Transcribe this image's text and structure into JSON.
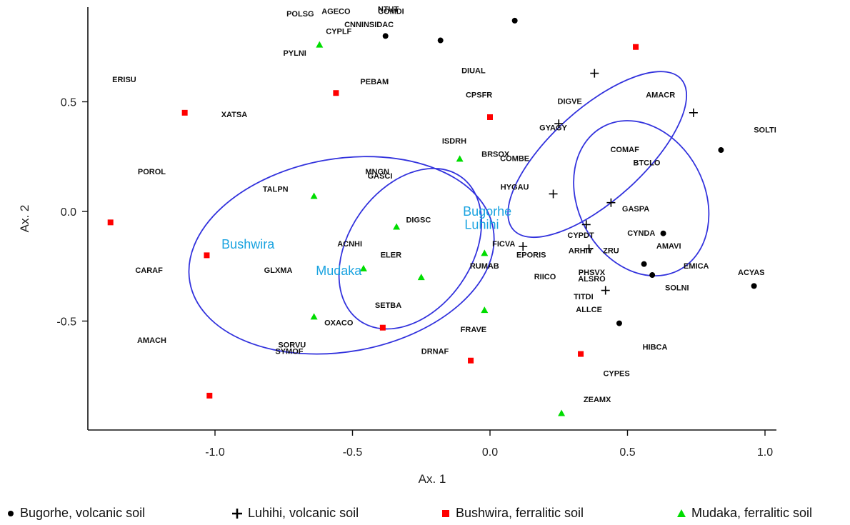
{
  "chart_data": {
    "type": "scatter",
    "xlabel": "Ax. 1",
    "ylabel": "Ax. 2",
    "xlim": [
      -1.47,
      1.05
    ],
    "ylim": [
      -1.0,
      0.93
    ],
    "xticks": [
      "-1.0",
      "-0.5",
      "0.0",
      "0.5",
      "1.0"
    ],
    "xtick_values": [
      -1.0,
      -0.5,
      0.0,
      0.5,
      1.0
    ],
    "yticks": [
      "0.5",
      "0.0",
      "-0.5"
    ],
    "ytick_values": [
      0.5,
      0.0,
      -0.5
    ],
    "grid": false,
    "legend_position": "bottom",
    "series": [
      {
        "name": "Bugorhe, volcanic soil",
        "marker": "circle",
        "color": "#000000",
        "points": [
          [
            -0.38,
            0.8
          ],
          [
            -0.18,
            0.78
          ],
          [
            0.09,
            0.87
          ],
          [
            0.84,
            0.28
          ],
          [
            0.63,
            -0.1
          ],
          [
            0.56,
            -0.24
          ],
          [
            0.59,
            -0.29
          ],
          [
            0.96,
            -0.34
          ],
          [
            0.47,
            -0.51
          ]
        ]
      },
      {
        "name": "Luhihi, volcanic soil",
        "marker": "plus",
        "color": "#000000",
        "points": [
          [
            0.38,
            0.63
          ],
          [
            0.74,
            0.45
          ],
          [
            0.25,
            0.4
          ],
          [
            0.23,
            0.08
          ],
          [
            0.44,
            0.04
          ],
          [
            0.35,
            -0.06
          ],
          [
            0.36,
            -0.17
          ],
          [
            0.12,
            -0.16
          ],
          [
            0.42,
            -0.36
          ]
        ]
      },
      {
        "name": "Bushwira, ferralitic soil",
        "marker": "square",
        "color": "#ff0000",
        "points": [
          [
            0.53,
            0.75
          ],
          [
            -0.56,
            0.54
          ],
          [
            -1.11,
            0.45
          ],
          [
            0.0,
            0.43
          ],
          [
            -1.38,
            -0.05
          ],
          [
            -1.03,
            -0.2
          ],
          [
            -0.39,
            -0.53
          ],
          [
            -0.07,
            -0.68
          ],
          [
            0.33,
            -0.65
          ],
          [
            -1.02,
            -0.84
          ]
        ]
      },
      {
        "name": "Mudaka, ferralitic soil",
        "marker": "triangle",
        "color": "#00dd00",
        "points": [
          [
            -0.62,
            0.76
          ],
          [
            -0.11,
            0.24
          ],
          [
            -0.64,
            0.07
          ],
          [
            -0.34,
            -0.07
          ],
          [
            -0.46,
            -0.26
          ],
          [
            -0.25,
            -0.3
          ],
          [
            -0.02,
            -0.45
          ],
          [
            -0.64,
            -0.48
          ],
          [
            0.26,
            -0.92
          ],
          [
            -0.02,
            -0.19
          ]
        ]
      }
    ],
    "species_labels": [
      {
        "text": "NTUT",
        "x": -0.37,
        "y": 0.91
      },
      {
        "text": "AGECO",
        "x": -0.56,
        "y": 0.9
      },
      {
        "text": "COMDI",
        "x": -0.36,
        "y": 0.9
      },
      {
        "text": "POLSG",
        "x": -0.69,
        "y": 0.89
      },
      {
        "text": "CNNINSIDAC",
        "x": -0.44,
        "y": 0.84
      },
      {
        "text": "CYPLF",
        "x": -0.55,
        "y": 0.81
      },
      {
        "text": "PYLNI",
        "x": -0.71,
        "y": 0.71
      },
      {
        "text": "DIUAL",
        "x": -0.06,
        "y": 0.63
      },
      {
        "text": "ERISU",
        "x": -1.33,
        "y": 0.59
      },
      {
        "text": "PEBAM",
        "x": -0.42,
        "y": 0.58
      },
      {
        "text": "CPSFR",
        "x": -0.04,
        "y": 0.52
      },
      {
        "text": "AMACR",
        "x": 0.62,
        "y": 0.52
      },
      {
        "text": "DIGVE",
        "x": 0.29,
        "y": 0.49
      },
      {
        "text": "XATSA",
        "x": -0.93,
        "y": 0.43
      },
      {
        "text": "GYAGY",
        "x": 0.23,
        "y": 0.37
      },
      {
        "text": "SOLTI",
        "x": 1.0,
        "y": 0.36
      },
      {
        "text": "ISDRH",
        "x": -0.13,
        "y": 0.31
      },
      {
        "text": "COMAF",
        "x": 0.49,
        "y": 0.27
      },
      {
        "text": "BRSOX",
        "x": 0.02,
        "y": 0.25
      },
      {
        "text": "COMBE",
        "x": 0.09,
        "y": 0.23
      },
      {
        "text": "BTCLO",
        "x": 0.57,
        "y": 0.21
      },
      {
        "text": "POROL",
        "x": -1.23,
        "y": 0.17
      },
      {
        "text": "MNGN",
        "x": -0.41,
        "y": 0.17
      },
      {
        "text": "GASCI",
        "x": -0.4,
        "y": 0.15
      },
      {
        "text": "TALPN",
        "x": -0.78,
        "y": 0.09
      },
      {
        "text": "HYGAU",
        "x": 0.09,
        "y": 0.1
      },
      {
        "text": "DIGSC",
        "x": -0.26,
        "y": -0.05
      },
      {
        "text": "GASPA",
        "x": 0.53,
        "y": -0.0
      },
      {
        "text": "CYPDT",
        "x": 0.33,
        "y": -0.12
      },
      {
        "text": "CYNDA",
        "x": 0.55,
        "y": -0.11
      },
      {
        "text": "FICVA",
        "x": 0.05,
        "y": -0.16
      },
      {
        "text": "ARHIY",
        "x": 0.33,
        "y": -0.19
      },
      {
        "text": "ZRU",
        "x": 0.44,
        "y": -0.19
      },
      {
        "text": "EPORIS",
        "x": 0.15,
        "y": -0.21
      },
      {
        "text": "AMAVI",
        "x": 0.65,
        "y": -0.17
      },
      {
        "text": "ACNHI",
        "x": -0.51,
        "y": -0.16
      },
      {
        "text": "ELER",
        "x": -0.36,
        "y": -0.21
      },
      {
        "text": "RUMAB",
        "x": -0.02,
        "y": -0.26
      },
      {
        "text": "EMICA",
        "x": 0.75,
        "y": -0.26
      },
      {
        "text": "CARAF",
        "x": -1.24,
        "y": -0.28
      },
      {
        "text": "GLXMA",
        "x": -0.77,
        "y": -0.28
      },
      {
        "text": "ACYAS",
        "x": 0.95,
        "y": -0.29
      },
      {
        "text": "RIICO",
        "x": 0.2,
        "y": -0.31
      },
      {
        "text": "PHSVX",
        "x": 0.37,
        "y": -0.29
      },
      {
        "text": "ALSRO",
        "x": 0.37,
        "y": -0.32
      },
      {
        "text": "SOLNI",
        "x": 0.68,
        "y": -0.36
      },
      {
        "text": "TITDI",
        "x": 0.34,
        "y": -0.4
      },
      {
        "text": "SETBA",
        "x": -0.37,
        "y": -0.44
      },
      {
        "text": "ALLCE",
        "x": 0.36,
        "y": -0.46
      },
      {
        "text": "OXACO",
        "x": -0.55,
        "y": -0.52
      },
      {
        "text": "FRAVE",
        "x": -0.06,
        "y": -0.55
      },
      {
        "text": "AMACH",
        "x": -1.23,
        "y": -0.6
      },
      {
        "text": "HIBCA",
        "x": 0.6,
        "y": -0.63
      },
      {
        "text": "SORVU",
        "x": -0.72,
        "y": -0.62
      },
      {
        "text": "SYMOF",
        "x": -0.73,
        "y": -0.65
      },
      {
        "text": "DRNAF",
        "x": -0.2,
        "y": -0.65
      },
      {
        "text": "CYPES",
        "x": 0.46,
        "y": -0.75
      },
      {
        "text": "ZEAMX",
        "x": 0.39,
        "y": -0.87
      }
    ],
    "group_labels": [
      {
        "text": "Bugorhe",
        "x": -0.01,
        "y": -0.02
      },
      {
        "text": "Luhihi",
        "x": -0.03,
        "y": -0.08
      },
      {
        "text": "Bushwira",
        "x": -0.88,
        "y": -0.17
      },
      {
        "text": "Mudaka",
        "x": -0.55,
        "y": -0.29
      }
    ],
    "ellipses": [
      {
        "group": "Bushwira",
        "cx": -0.54,
        "cy": -0.2,
        "rx": 0.56,
        "ry": 0.44,
        "rotation_deg": 10
      },
      {
        "group": "Mudaka",
        "cx": -0.29,
        "cy": -0.17,
        "rx": 0.32,
        "ry": 0.28,
        "rotation_deg": 55
      },
      {
        "group": "Luhihi",
        "cx": 0.39,
        "cy": 0.26,
        "rx": 0.41,
        "ry": 0.21,
        "rotation_deg": 42
      },
      {
        "group": "Bugorhe",
        "cx": 0.55,
        "cy": 0.06,
        "rx": 0.23,
        "ry": 0.37,
        "rotation_deg": 28
      }
    ]
  },
  "legend": {
    "items": [
      {
        "label": "Bugorhe, volcanic soil",
        "marker": "circle",
        "color": "#000000"
      },
      {
        "label": "Luhihi, volcanic soil",
        "marker": "plus",
        "color": "#000000"
      },
      {
        "label": "Bushwira, ferralitic soil",
        "marker": "square",
        "color": "#ff0000"
      },
      {
        "label": "Mudaka, ferralitic soil",
        "marker": "triangle",
        "color": "#00dd00"
      }
    ]
  },
  "colors": {
    "ellipse": "#3333dd",
    "group_label": "#1aa3e0"
  }
}
